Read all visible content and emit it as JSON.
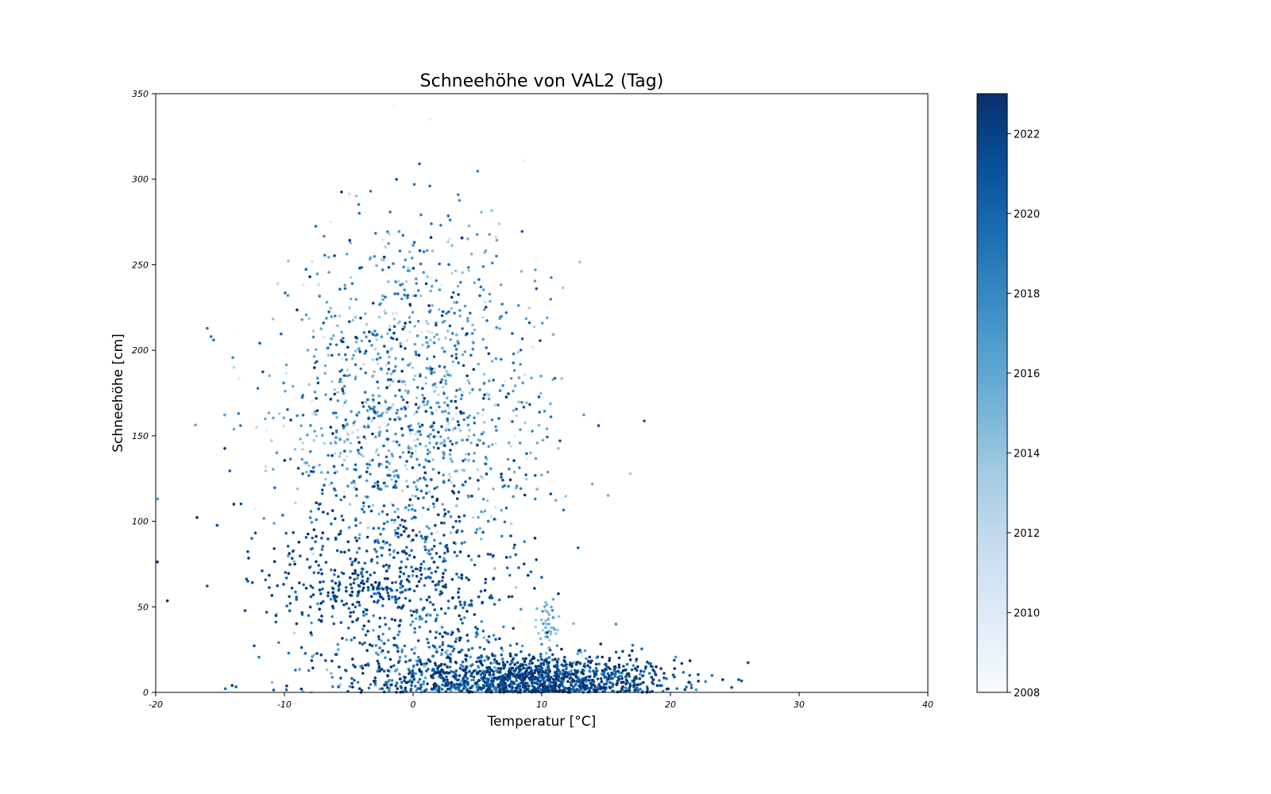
{
  "chart_data": {
    "type": "scatter",
    "title": "Schneehöhe von VAL2 (Tag)",
    "xlabel": "Temperatur [°C]",
    "ylabel": "Schneehöhe [cm]",
    "xlim": [
      -20,
      40
    ],
    "ylim": [
      0,
      350
    ],
    "x_ticks": [
      "-20",
      "-10",
      "0",
      "10",
      "20",
      "30",
      "40"
    ],
    "y_ticks": [
      "0",
      "50",
      "100",
      "150",
      "200",
      "250",
      "300",
      "350"
    ],
    "grid": false,
    "legend": "none",
    "colorbar": {
      "label": "",
      "range": [
        2008,
        2023
      ],
      "ticks": [
        "2008",
        "2010",
        "2012",
        "2014",
        "2016",
        "2018",
        "2020",
        "2022"
      ],
      "colormap": "Blues",
      "colors": [
        "#f7fbff",
        "#deebf7",
        "#c6dbef",
        "#9ecae1",
        "#6baed6",
        "#4292c6",
        "#2171b5",
        "#08519c",
        "#08306b"
      ],
      "position": "right"
    },
    "series": [
      {
        "color_variable": "year",
        "clusters": [
          {
            "x_center": 9.5,
            "x_spread": 5.5,
            "y_center": 8,
            "y_spread": 7,
            "year_center": 2021,
            "year_spread": 1.8,
            "count": 1200
          },
          {
            "x_center": 1.5,
            "x_spread": 6,
            "y_center": 20,
            "y_spread": 14,
            "year_center": 2019,
            "year_spread": 3,
            "count": 350
          },
          {
            "x_center": -2,
            "x_spread": 5,
            "y_center": 60,
            "y_spread": 14,
            "year_center": 2021,
            "year_spread": 1.5,
            "count": 380
          },
          {
            "x_center": -1.5,
            "x_spread": 5.5,
            "y_center": 95,
            "y_spread": 20,
            "year_center": 2020,
            "year_spread": 2.5,
            "count": 300
          },
          {
            "x_center": 0,
            "x_spread": 5.5,
            "y_center": 150,
            "y_spread": 25,
            "year_center": 2016,
            "year_spread": 3.5,
            "count": 650
          },
          {
            "x_center": 0,
            "x_spread": 5,
            "y_center": 205,
            "y_spread": 25,
            "year_center": 2017,
            "year_spread": 3.5,
            "count": 400
          },
          {
            "x_center": -1,
            "x_spread": 5,
            "y_center": 255,
            "y_spread": 20,
            "year_center": 2017,
            "year_spread": 3.5,
            "count": 110
          },
          {
            "x_center": 10.5,
            "x_spread": 0.4,
            "y_center": 38,
            "y_spread": 8,
            "year_center": 2015,
            "year_spread": 1,
            "count": 40
          }
        ],
        "outliers": [
          {
            "x": -15.7,
            "y": 208,
            "year": 2019
          },
          {
            "x": -15.5,
            "y": 206,
            "year": 2019
          },
          {
            "x": 0.5,
            "y": 309,
            "year": 2020
          },
          {
            "x": 1.3,
            "y": 296,
            "year": 2019
          },
          {
            "x": 0.1,
            "y": 297,
            "year": 2019
          },
          {
            "x": 3.5,
            "y": 291,
            "year": 2018
          },
          {
            "x": -3.3,
            "y": 293,
            "year": 2019
          },
          {
            "x": -1.5,
            "y": 343,
            "year": 2009
          },
          {
            "x": 1.3,
            "y": 335,
            "year": 2009
          },
          {
            "x": 8.7,
            "y": 311,
            "year": 2009
          },
          {
            "x": 10.7,
            "y": 116,
            "year": 2021
          },
          {
            "x": 21.5,
            "y": 10,
            "year": 2020
          },
          {
            "x": 20.3,
            "y": 9,
            "year": 2021
          }
        ]
      }
    ]
  }
}
